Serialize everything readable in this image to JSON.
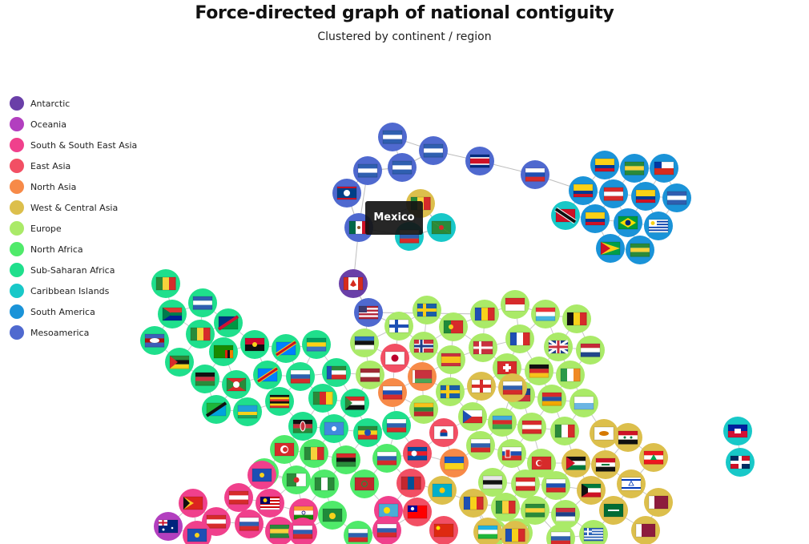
{
  "header": {
    "title": "Force-directed graph of national contiguity",
    "subtitle": "Clustered by continent / region"
  },
  "legend": [
    {
      "label": "Antarctic",
      "color": "#6a3fa8"
    },
    {
      "label": "Oceania",
      "color": "#b23fbf"
    },
    {
      "label": "South & South East Asia",
      "color": "#f0408c"
    },
    {
      "label": "East Asia",
      "color": "#f24f64"
    },
    {
      "label": "North Asia",
      "color": "#f78a48"
    },
    {
      "label": "West & Central Asia",
      "color": "#dcbf4c"
    },
    {
      "label": "Europe",
      "color": "#aaea68"
    },
    {
      "label": "North Africa",
      "color": "#4fea6a"
    },
    {
      "label": "Sub-Saharan Africa",
      "color": "#1fdf8c"
    },
    {
      "label": "Caribbean Islands",
      "color": "#18c8c8"
    },
    {
      "label": "South America",
      "color": "#1a93d8"
    },
    {
      "label": "Mesoamerica",
      "color": "#4f69cf"
    }
  ],
  "tooltip": {
    "label": "Mexico"
  }
}
